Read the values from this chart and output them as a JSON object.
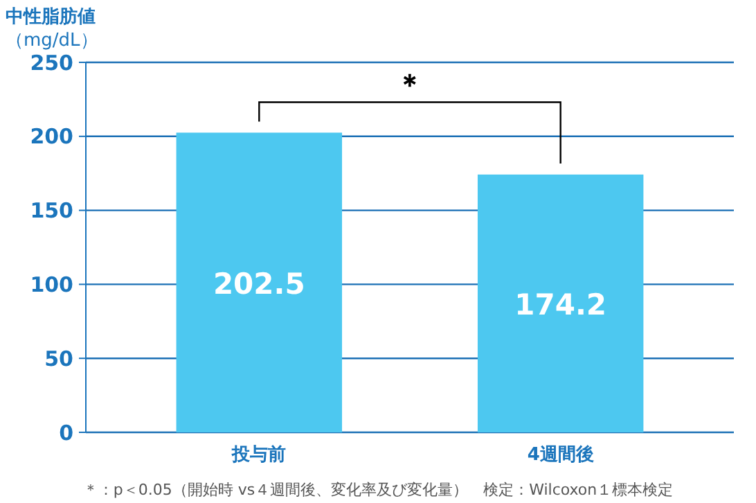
{
  "chart_data": {
    "type": "bar",
    "title": "中性脂肪値",
    "ylabel": "（mg/dL）",
    "categories": [
      "投与前",
      "4週間後"
    ],
    "values": [
      202.5,
      174.2
    ],
    "color": "#4dc8f0",
    "ylim": [
      0,
      250
    ],
    "yticks": [
      0,
      50,
      100,
      150,
      200,
      250
    ],
    "grid": "y",
    "data_labels": true,
    "annotations": [
      "＊",
      "＊：p＜0.05（開始時 vs４週間後、変化率及び変化量）　検定：Wilcoxon１標本検定"
    ]
  }
}
